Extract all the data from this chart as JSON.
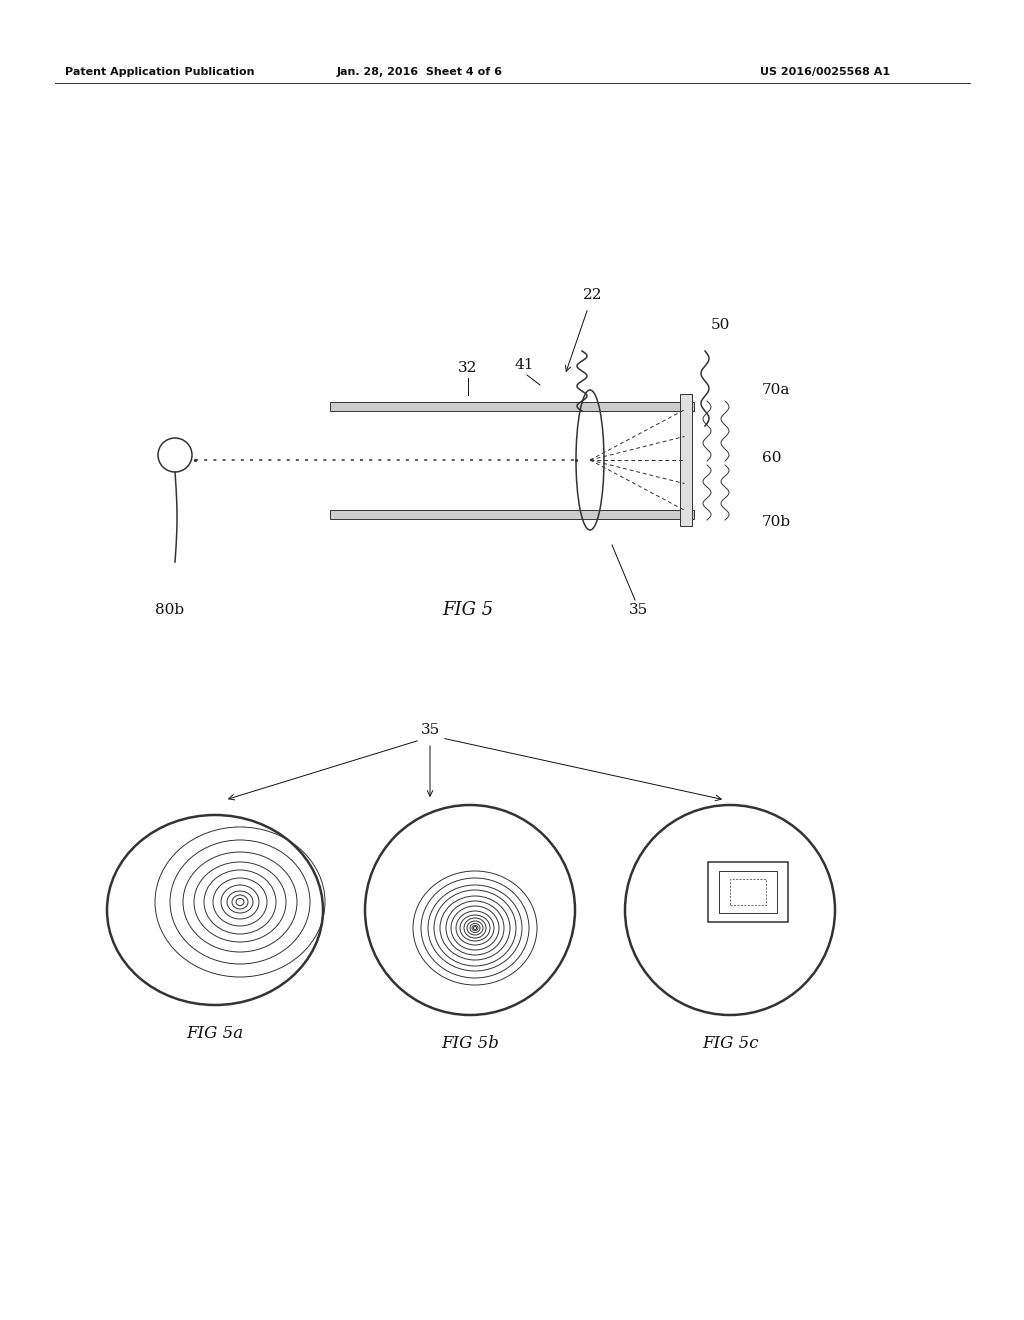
{
  "bg_color": "#ffffff",
  "header_left": "Patent Application Publication",
  "header_mid": "Jan. 28, 2016  Sheet 4 of 6",
  "header_right": "US 2016/0025568 A1",
  "fig5_label": "FIG 5",
  "fig5a_label": "FIG 5a",
  "fig5b_label": "FIG 5b",
  "fig5c_label": "FIG 5c",
  "label_22": "22",
  "label_32": "32",
  "label_41": "41",
  "label_50": "50",
  "label_60": "60",
  "label_70a": "70a",
  "label_70b": "70b",
  "label_35": "35",
  "label_80b": "80b",
  "color_line": "#333333",
  "color_dark": "#111111"
}
